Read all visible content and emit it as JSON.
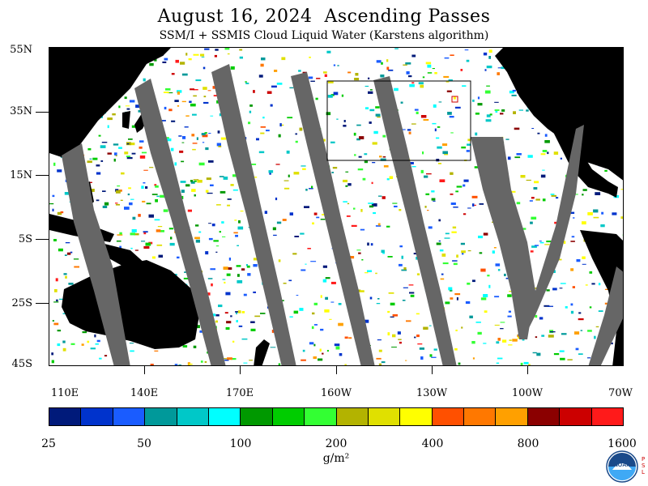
{
  "title": "August 16, 2024  Ascending Passes",
  "subtitle": "SSM/I + SSMIS Cloud Liquid Water (Karstens algorithm)",
  "map": {
    "lat_labels": [
      "55N",
      "35N",
      "15N",
      "5S",
      "25S",
      "45S"
    ],
    "lon_labels": [
      "110E",
      "140E",
      "170E",
      "160W",
      "130W",
      "100W",
      "70W"
    ],
    "colors": {
      "no_data": "#666666",
      "land": "#000000",
      "ocean_clear": "#ffffff"
    }
  },
  "colorbar": {
    "colors": [
      "#001a7a",
      "#0033cc",
      "#1a5cff",
      "#00999a",
      "#00c8c8",
      "#00ffff",
      "#009900",
      "#00cc00",
      "#33ff33",
      "#b3b300",
      "#e0e000",
      "#ffff00",
      "#ff5000",
      "#ff7800",
      "#ffa000",
      "#8b0000",
      "#cc0000",
      "#ff1a1a"
    ],
    "labels": [
      "25",
      "50",
      "100",
      "200",
      "400",
      "800",
      "1600"
    ],
    "units": "g/m²"
  },
  "logo": {
    "text": "NOAA",
    "side_letters": "P\nS\nL"
  }
}
